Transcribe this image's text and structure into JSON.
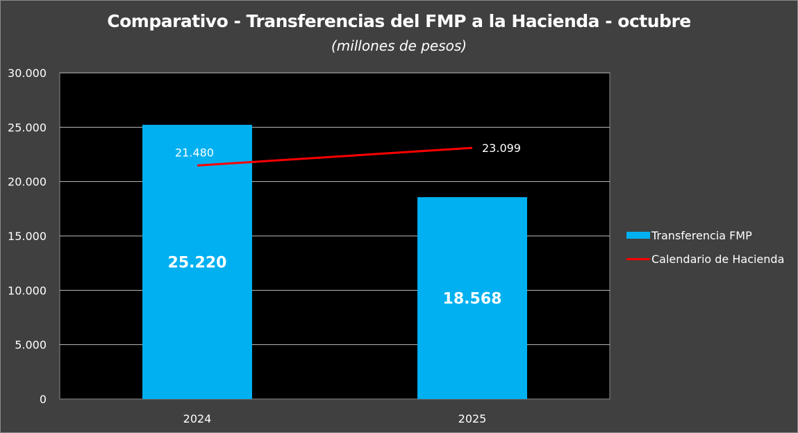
{
  "chart_data": {
    "type": "bar",
    "title": "Comparativo - Transferencias del FMP a la Hacienda - octubre",
    "subtitle": "(millones de pesos)",
    "categories": [
      "2024",
      "2025"
    ],
    "ylim": [
      0,
      30000
    ],
    "yticks": [
      0,
      5000,
      10000,
      15000,
      20000,
      25000,
      30000
    ],
    "ytick_labels": [
      "0",
      "5.000",
      "10.000",
      "15.000",
      "20.000",
      "25.000",
      "30.000"
    ],
    "grid": true,
    "legend_position": "right",
    "series": [
      {
        "name": "Transferencia FMP",
        "type": "bar",
        "color": "#00b0f0",
        "values": [
          25220,
          18568
        ],
        "labels": [
          "25.220",
          "18.568"
        ]
      },
      {
        "name": "Calendario de Hacienda",
        "type": "line",
        "color": "#ff0000",
        "values": [
          21480,
          23099
        ],
        "labels": [
          "21.480",
          "23.099"
        ]
      }
    ]
  },
  "colors": {
    "background": "#404040",
    "plot_background": "#000000",
    "gridline": "#bfbfbf"
  }
}
